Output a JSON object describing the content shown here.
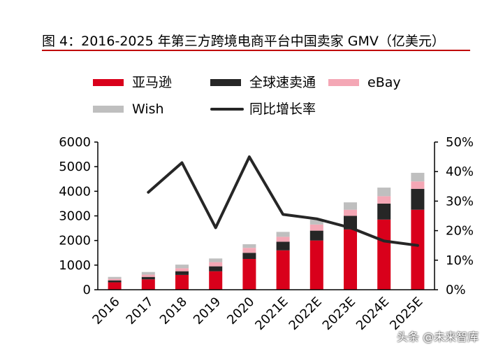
{
  "title": "图 4：2016-2025 年第三方跨境电商平台中国卖家 GMV（亿美元）",
  "watermark": "头条 @未来智库",
  "chart_data": {
    "type": "bar",
    "stacked": true,
    "categories": [
      "2016",
      "2017",
      "2018",
      "2019",
      "2020",
      "2021E",
      "2022E",
      "2023E",
      "2024E",
      "2025E"
    ],
    "series": [
      {
        "name": "亚马逊",
        "kind": "bar",
        "color": "#d9001b",
        "values": [
          300,
          420,
          600,
          750,
          1250,
          1600,
          2000,
          2450,
          2850,
          3250
        ]
      },
      {
        "name": "全球速卖通",
        "kind": "bar",
        "color": "#262626",
        "values": [
          80,
          100,
          150,
          200,
          250,
          350,
          400,
          550,
          650,
          850
        ]
      },
      {
        "name": "eBay",
        "kind": "bar",
        "color": "#f4a7b5",
        "values": [
          60,
          90,
          120,
          170,
          200,
          200,
          250,
          250,
          300,
          300
        ]
      },
      {
        "name": "Wish",
        "kind": "bar",
        "color": "#bfbfbf",
        "values": [
          80,
          110,
          150,
          150,
          150,
          200,
          200,
          300,
          350,
          350
        ]
      },
      {
        "name": "同比增长率",
        "kind": "line",
        "axis": "right",
        "color": "#262626",
        "values": [
          null,
          0.33,
          0.43,
          0.21,
          0.45,
          0.255,
          0.24,
          0.21,
          0.165,
          0.15
        ]
      }
    ],
    "ylim_left": [
      0,
      6000
    ],
    "yticks_left": [
      "0",
      "1000",
      "2000",
      "3000",
      "4000",
      "5000",
      "6000"
    ],
    "ylim_right": [
      0,
      0.5
    ],
    "yticks_right": [
      "0%",
      "10%",
      "20%",
      "30%",
      "40%",
      "50%"
    ],
    "legend_position": "top",
    "grid": false
  }
}
